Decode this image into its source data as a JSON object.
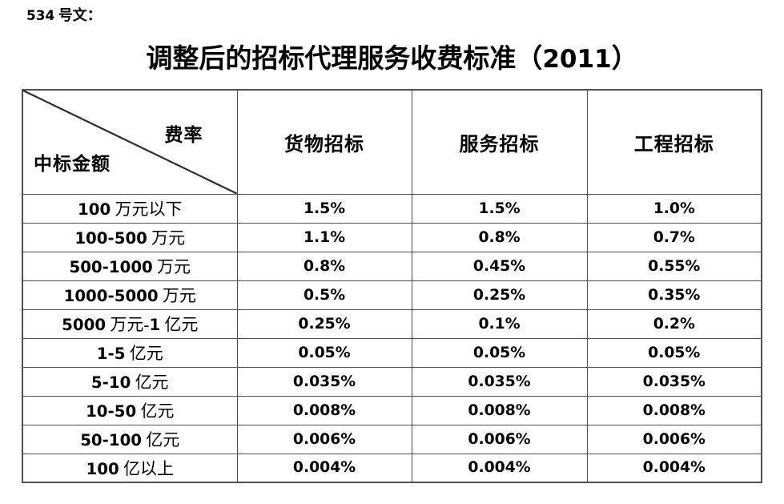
{
  "page": {
    "doc_label": "534 号文：",
    "title": "调整后的招标代理服务收费标准（2011）"
  },
  "table": {
    "corner": {
      "top_right": "费率",
      "bottom_left": "中标金额"
    },
    "columns": [
      "货物招标",
      "服务招标",
      "工程招标"
    ],
    "rows": [
      {
        "label": "100 万元以下",
        "values": [
          "1.5%",
          "1.5%",
          "1.0%"
        ]
      },
      {
        "label": "100-500 万元",
        "values": [
          "1.1%",
          "0.8%",
          "0.7%"
        ]
      },
      {
        "label": "500-1000 万元",
        "values": [
          "0.8%",
          "0.45%",
          "0.55%"
        ]
      },
      {
        "label": "1000-5000 万元",
        "values": [
          "0.5%",
          "0.25%",
          "0.35%"
        ]
      },
      {
        "label": "5000 万元-1 亿元",
        "values": [
          "0.25%",
          "0.1%",
          "0.2%"
        ]
      },
      {
        "label": "1-5 亿元",
        "values": [
          "0.05%",
          "0.05%",
          "0.05%"
        ]
      },
      {
        "label": "5-10 亿元",
        "values": [
          "0.035%",
          "0.035%",
          "0.035%"
        ]
      },
      {
        "label": "10-50 亿元",
        "values": [
          "0.008%",
          "0.008%",
          "0.008%"
        ]
      },
      {
        "label": "50-100 亿元",
        "values": [
          "0.006%",
          "0.006%",
          "0.006%"
        ]
      },
      {
        "label": "100 亿以上",
        "values": [
          "0.004%",
          "0.004%",
          "0.004%"
        ]
      }
    ]
  },
  "colors": {
    "text": "#000000",
    "border": "#4f4f4f",
    "diagonal": "#2e2e2e",
    "background": "#ffffff"
  }
}
